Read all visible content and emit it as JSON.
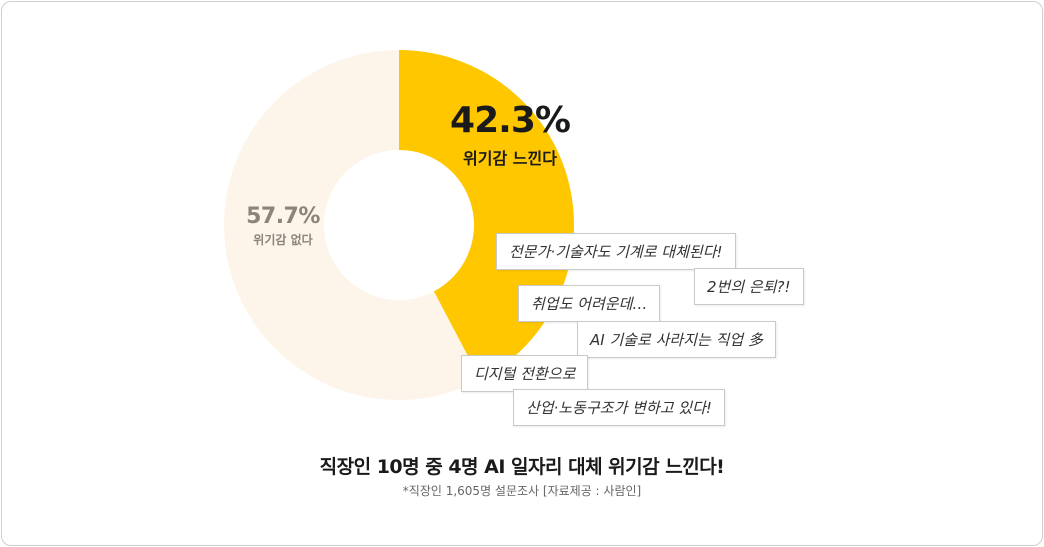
{
  "chart_data": {
    "type": "pie",
    "style": "donut",
    "slices": [
      {
        "label": "위기감 느낀다",
        "value": 42.3,
        "value_label": "42.3%",
        "color": "#FFC700"
      },
      {
        "label": "위기감 없다",
        "value": 57.7,
        "value_label": "57.7%",
        "color": "#FDF5EA"
      }
    ],
    "title": "직장인 10명 중 4명 AI 일자리 대체 위기감 느낀다!",
    "note": "*직장인 1,605명 설문조사 [자료제공 : 사람인]"
  },
  "comments": [
    "전문가·기술자도 기계로 대체된다!",
    "2번의 은퇴?!",
    "취업도 어려운데…",
    "AI 기술로 사라지는 직업 多",
    "디지털 전환으로",
    "산업·노동구조가 변하고 있다!"
  ]
}
